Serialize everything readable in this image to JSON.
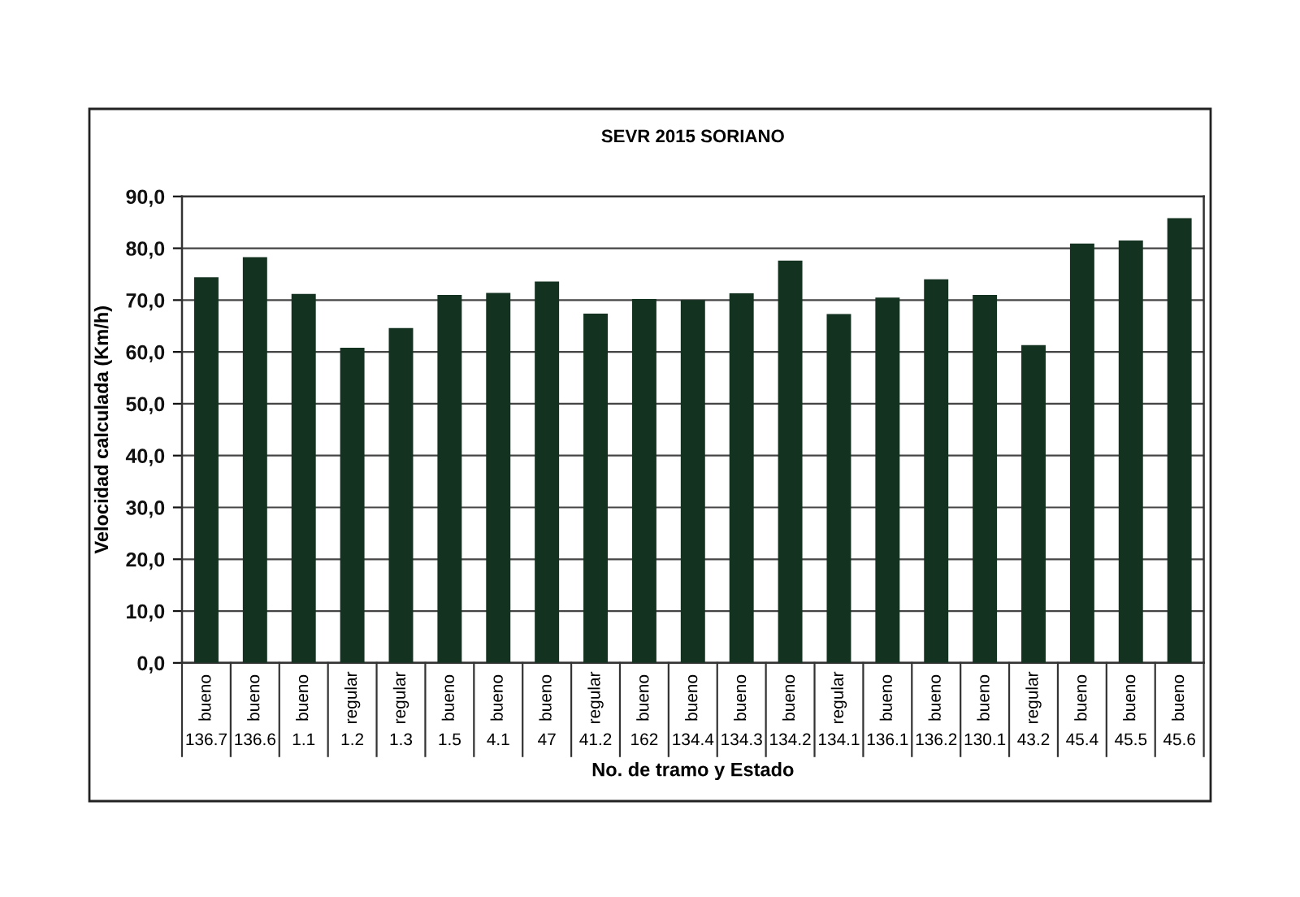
{
  "chart_data": {
    "type": "bar",
    "title": "SEVR 2015 SORIANO",
    "xlabel": "No. de tramo y Estado",
    "ylabel": "Velocidad calculada (Km/h)",
    "categories": [
      "136.7",
      "136.6",
      "1.1",
      "1.2",
      "1.3",
      "1.5",
      "4.1",
      "47",
      "41.2",
      "162",
      "134.4",
      "134.3",
      "134.2",
      "134.1",
      "136.1",
      "136.2",
      "130.1",
      "43.2",
      "45.4",
      "45.5",
      "45.6"
    ],
    "values": [
      74.4,
      78.3,
      71.2,
      60.8,
      64.6,
      71.0,
      71.4,
      73.6,
      67.4,
      70.2,
      70.0,
      71.3,
      77.6,
      67.3,
      70.5,
      74.0,
      71.0,
      61.3,
      80.9,
      81.5,
      85.8
    ],
    "color": "#143220",
    "ylim": [
      0,
      90
    ],
    "yticks": [
      {
        "value": 0,
        "label": "0,0"
      },
      {
        "value": 10,
        "label": "10,0"
      },
      {
        "value": 20,
        "label": "20,0"
      },
      {
        "value": 30,
        "label": "30,0"
      },
      {
        "value": 40,
        "label": "40,0"
      },
      {
        "value": 50,
        "label": "50,0"
      },
      {
        "value": 60,
        "label": "60,0"
      },
      {
        "value": 70,
        "label": "70,0"
      },
      {
        "value": 80,
        "label": "80,0"
      },
      {
        "value": 90,
        "label": "90,0"
      }
    ],
    "grid": "y",
    "annotations": [
      "bueno",
      "bueno",
      "bueno",
      "regular",
      "regular",
      "bueno",
      "bueno",
      "bueno",
      "regular",
      "bueno",
      "bueno",
      "bueno",
      "bueno",
      "regular",
      "bueno",
      "bueno",
      "bueno",
      "regular",
      "bueno",
      "bueno",
      "bueno"
    ]
  }
}
